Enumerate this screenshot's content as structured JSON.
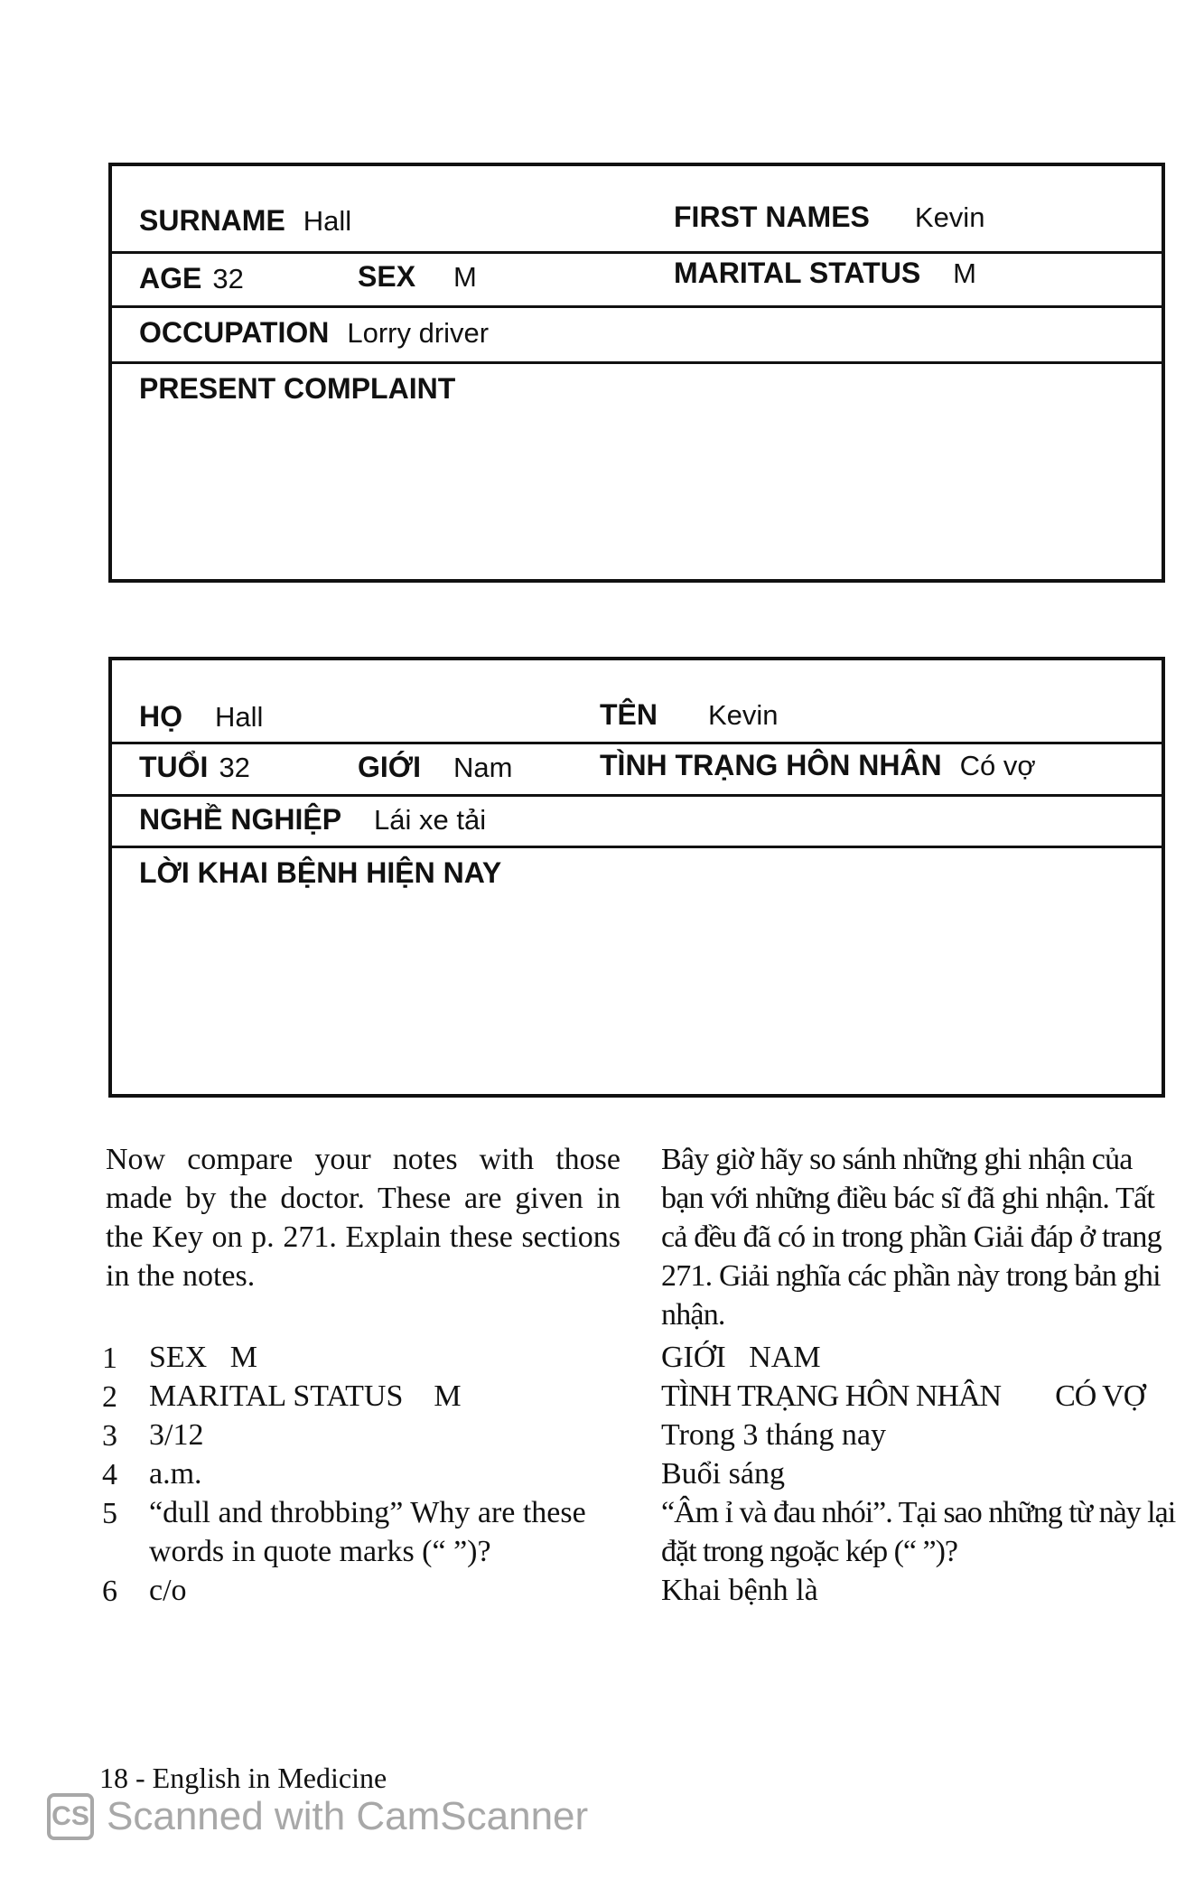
{
  "form_en": {
    "surname_label": "SURNAME",
    "surname": "Hall",
    "first_names_label": "FIRST NAMES",
    "first_names": "Kevin",
    "age_label": "AGE",
    "age": "32",
    "sex_label": "SEX",
    "sex": "M",
    "marital_label": "MARITAL STATUS",
    "marital": "M",
    "occupation_label": "OCCUPATION",
    "occupation": "Lorry driver",
    "complaint_label": "PRESENT COMPLAINT"
  },
  "form_vi": {
    "surname_label": "HỌ",
    "surname": "Hall",
    "first_names_label": "TÊN",
    "first_names": "Kevin",
    "age_label": "TUỔI",
    "age": "32",
    "sex_label": "GIỚI",
    "sex": "Nam",
    "marital_label": "TÌNH TRẠNG HÔN NHÂN",
    "marital": "Có vợ",
    "occupation_label": "NGHỀ NGHIỆP",
    "occupation": "Lái xe tải",
    "complaint_label": "LỜI KHAI BỆNH HIỆN NAY"
  },
  "instructions": {
    "en": "Now compare your notes with those made by the doctor. These are given in the Key on p. 271. Explain these sections in the notes.",
    "vi": "Bây giờ hãy so sánh những ghi nhận của bạn với những điều bác sĩ đã ghi nhận. Tất cả đều đã có in trong phần Giải đáp ở trang 271. Giải nghĩa các phần này trong bản ghi nhận."
  },
  "items": [
    {
      "num": "1",
      "en": "SEX   M",
      "vi": "GIỚI   NAM"
    },
    {
      "num": "2",
      "en": "MARITAL STATUS    M",
      "vi": "TÌNH TRẠNG HÔN NHÂN        CÓ VỢ"
    },
    {
      "num": "3",
      "en": "3/12",
      "vi": "Trong 3 tháng nay"
    },
    {
      "num": "4",
      "en": "a.m.",
      "vi": "Buổi sáng"
    },
    {
      "num": "5",
      "en": "“dull and throbbing” Why are these words in quote marks (“ ”)?",
      "vi": "“Âm ỉ và đau nhói”. Tại sao những từ này lại đặt trong ngoặc kép (“ ”)?"
    },
    {
      "num": "6",
      "en": "c/o",
      "vi": "Khai bệnh là"
    }
  ],
  "footer": "18 - English in Medicine",
  "watermark": {
    "logo": "CS",
    "text": "Scanned with CamScanner"
  }
}
